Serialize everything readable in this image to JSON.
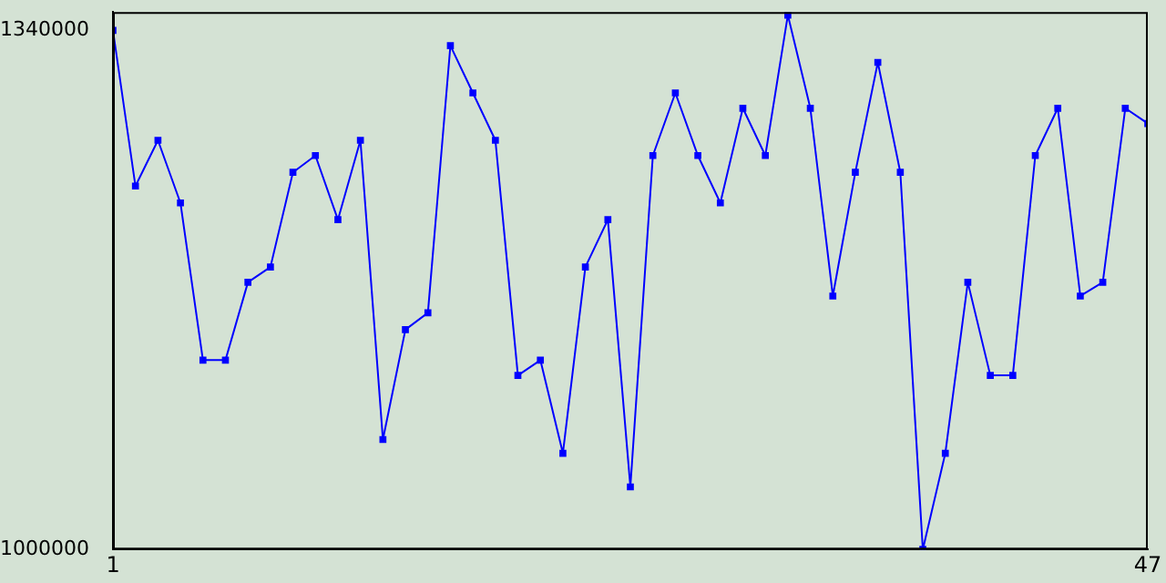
{
  "chart_data": {
    "type": "line",
    "x": [
      1,
      2,
      3,
      4,
      5,
      6,
      7,
      8,
      9,
      10,
      11,
      12,
      13,
      14,
      15,
      16,
      17,
      18,
      19,
      20,
      21,
      22,
      23,
      24,
      25,
      26,
      27,
      28,
      29,
      30,
      31,
      32,
      33,
      34,
      35,
      36,
      37,
      38,
      39,
      40,
      41,
      42,
      43,
      44,
      45,
      46,
      47
    ],
    "series": [
      {
        "color": "#0000ff",
        "values": [
          1340000,
          1238000,
          1268000,
          1227000,
          1124000,
          1124000,
          1175000,
          1185000,
          1247000,
          1258000,
          1216000,
          1268000,
          1072000,
          1144000,
          1155000,
          1330000,
          1299000,
          1268000,
          1114000,
          1124000,
          1063000,
          1185000,
          1216000,
          1041000,
          1258000,
          1299000,
          1258000,
          1227000,
          1289000,
          1258000,
          1350000,
          1289000,
          1166000,
          1247000,
          1319000,
          1247000,
          1000000,
          1063000,
          1175000,
          1114000,
          1114000,
          1258000,
          1289000,
          1166000,
          1175000,
          1289000,
          1279000
        ]
      }
    ],
    "xlim": [
      1,
      47
    ],
    "xticks": [
      1,
      47
    ],
    "ylim": [
      1000000,
      1352000
    ],
    "yticks": [
      1000000,
      1340000
    ],
    "grid": false,
    "legend": false,
    "marker": "square",
    "line_style": "solid"
  }
}
